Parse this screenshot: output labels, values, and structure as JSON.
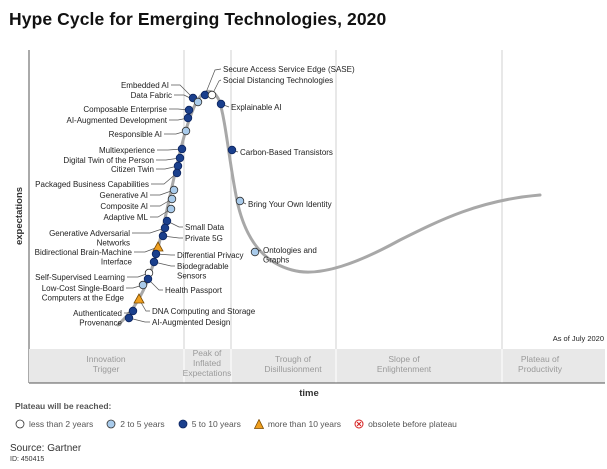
{
  "chart_data": {
    "type": "scatter",
    "title": "Hype Cycle for Emerging Technologies, 2020",
    "xlabel": "time",
    "ylabel": "expectations",
    "as_of": "As of July 2020",
    "phases": [
      "Innovation Trigger",
      "Peak of Inflated Expectations",
      "Trough of Disillusionment",
      "Slope of Enlightenment",
      "Plateau of Productivity"
    ],
    "legend_title": "Plateau will be reached:",
    "legend": [
      {
        "key": "lt2",
        "label": "less than 2 years"
      },
      {
        "key": "2to5",
        "label": "2 to 5 years"
      },
      {
        "key": "5to10",
        "label": "5 to 10 years"
      },
      {
        "key": "gt10",
        "label": "more than 10 years"
      },
      {
        "key": "obsolete",
        "label": "obsolete before plateau"
      }
    ],
    "colors": {
      "lt2": "#ffffff",
      "2to5": "#a9cbeb",
      "5to10": "#1a3f8c",
      "gt10": "#f0a020",
      "obsolete": "#d62020",
      "curve": "#a8a8a8"
    },
    "technologies": [
      {
        "name": "Secure Access Service Edge (SASE)",
        "category": "5to10"
      },
      {
        "name": "Social Distancing Technologies",
        "category": "lt2"
      },
      {
        "name": "Embedded AI",
        "category": "5to10"
      },
      {
        "name": "Data Fabric",
        "category": "2to5"
      },
      {
        "name": "Explainable AI",
        "category": "5to10"
      },
      {
        "name": "Composable Enterprise",
        "category": "5to10"
      },
      {
        "name": "AI-Augmented Development",
        "category": "5to10"
      },
      {
        "name": "Responsible AI",
        "category": "2to5"
      },
      {
        "name": "Carbon-Based Transistors",
        "category": "5to10"
      },
      {
        "name": "Multiexperience",
        "category": "5to10"
      },
      {
        "name": "Digital Twin of the Person",
        "category": "5to10"
      },
      {
        "name": "Citizen Twin",
        "category": "5to10"
      },
      {
        "name": "Packaged Business Capabilities",
        "category": "5to10"
      },
      {
        "name": "Bring Your Own Identity",
        "category": "2to5"
      },
      {
        "name": "Generative AI",
        "category": "2to5"
      },
      {
        "name": "Composite AI",
        "category": "2to5"
      },
      {
        "name": "Adaptive ML",
        "category": "2to5"
      },
      {
        "name": "Small Data",
        "category": "5to10"
      },
      {
        "name": "Generative Adversarial Networks",
        "category": "5to10"
      },
      {
        "name": "Private 5G",
        "category": "5to10"
      },
      {
        "name": "Ontologies and Graphs",
        "category": "2to5"
      },
      {
        "name": "Bidirectional Brain-Machine Interface",
        "category": "gt10"
      },
      {
        "name": "Differential Privacy",
        "category": "5to10"
      },
      {
        "name": "Biodegradable Sensors",
        "category": "5to10"
      },
      {
        "name": "Self-Supervised Learning",
        "category": "lt2"
      },
      {
        "name": "Health Passport",
        "category": "5to10"
      },
      {
        "name": "Low-Cost Single-Board Computers at the Edge",
        "category": "2to5"
      },
      {
        "name": "DNA Computing and Storage",
        "category": "gt10"
      },
      {
        "name": "Authenticated Provenance",
        "category": "5to10"
      },
      {
        "name": "AI-Augmented Design",
        "category": "5to10"
      }
    ]
  },
  "source": "Source: Gartner",
  "doc_id": "ID: 450415"
}
